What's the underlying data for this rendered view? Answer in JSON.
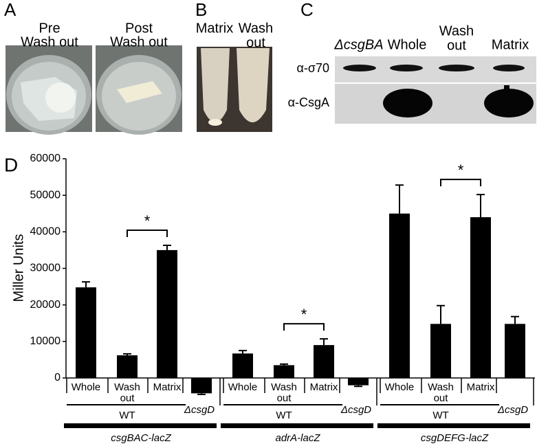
{
  "panel_a": {
    "label": "A",
    "captions": [
      [
        "Pre",
        "Wash out"
      ],
      [
        "Post",
        "Wash out"
      ]
    ]
  },
  "panel_b": {
    "label": "B",
    "captions": [
      [
        "Matrix"
      ],
      [
        "Wash",
        "out"
      ]
    ]
  },
  "panel_c": {
    "label": "C",
    "lanes": [
      [
        "ΔcsgBA"
      ],
      [
        "Whole"
      ],
      [
        "Wash",
        "out"
      ],
      [
        "Matrix"
      ]
    ],
    "rows": [
      "α-σ70",
      "α-CsgA"
    ]
  },
  "chart_data": {
    "type": "bar",
    "label": "D",
    "ylabel": "Miller Units",
    "ylim": [
      0,
      60000
    ],
    "yticks": [
      0,
      10000,
      20000,
      30000,
      40000,
      50000,
      60000
    ],
    "color": "#000000",
    "significance": "*",
    "subgroup": "WT",
    "groups": [
      {
        "name": "csgBAC-lacZ",
        "categories": [
          [
            "Whole"
          ],
          [
            "Wash",
            "out"
          ],
          [
            "Matrix"
          ],
          [
            "ΔcsgD"
          ]
        ],
        "values": [
          24800,
          6200,
          35000,
          -4200
        ],
        "errors": [
          1500,
          400,
          1300,
          300
        ]
      },
      {
        "name": "adrA-lacZ",
        "categories": [
          [
            "Whole"
          ],
          [
            "Wash",
            "out"
          ],
          [
            "Matrix"
          ],
          [
            "ΔcsgD"
          ]
        ],
        "values": [
          6700,
          3500,
          9000,
          -2000
        ],
        "errors": [
          800,
          300,
          1700,
          300
        ]
      },
      {
        "name": "csgDEFG-lacZ",
        "categories": [
          [
            "Whole"
          ],
          [
            "Wash",
            "out"
          ],
          [
            "Matrix"
          ],
          [
            "ΔcsgD"
          ]
        ],
        "values": [
          45000,
          14800,
          44000,
          14800
        ],
        "errors": [
          7800,
          5000,
          6200,
          2000
        ]
      }
    ]
  }
}
